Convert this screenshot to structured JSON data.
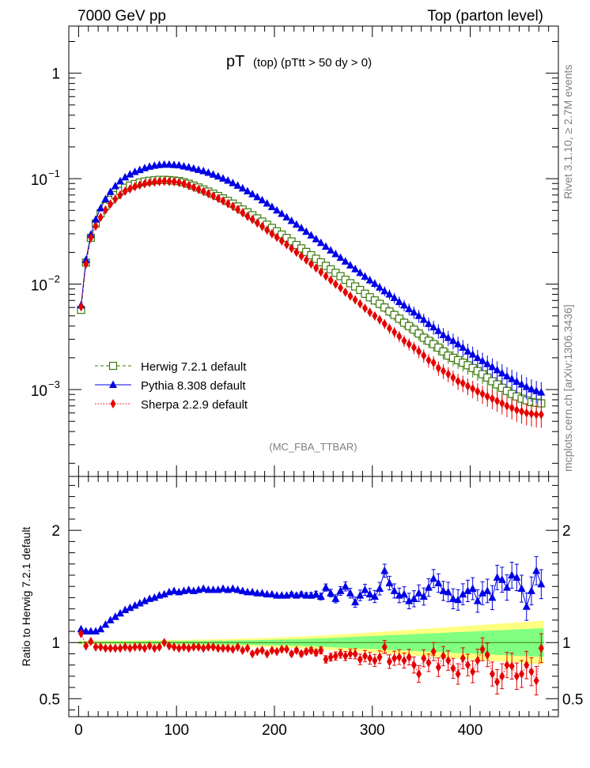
{
  "header": {
    "left": "7000 GeV pp",
    "right": "Top (parton level)"
  },
  "side_text": {
    "upper": "Rivet 3.1.10, ≥ 2.7M events",
    "lower": "mcplots.cern.ch [arXiv:1306.3436]"
  },
  "analysis_label": "(MC_FBA_TTBAR)",
  "colors": {
    "herwig": "#3c7a0c",
    "pythia": "#0000e6",
    "sherpa": "#e60000",
    "band_outer": "#ffff80",
    "band_inner": "#80ff80"
  },
  "chart_data": [
    {
      "type": "scatter",
      "panel": "main",
      "title_main": "pT",
      "title_sub": "(top) (pTtt > 50 dy > 0)",
      "xlim": [
        -10,
        490
      ],
      "ylim": [
        0.00015,
        2.8
      ],
      "yscale": "log",
      "yticks": [
        {
          "v": 1,
          "label": "1"
        },
        {
          "v": 0.1,
          "label": "10",
          "exp": "−1"
        },
        {
          "v": 0.01,
          "label": "10",
          "exp": "−2"
        },
        {
          "v": 0.001,
          "label": "10",
          "exp": "−3"
        }
      ],
      "legend": [
        {
          "key": "herwig",
          "label": "Herwig 7.2.1 default",
          "marker": "square-open",
          "line": "dashed"
        },
        {
          "key": "pythia",
          "label": "Pythia 8.308 default",
          "marker": "triangle",
          "line": "solid"
        },
        {
          "key": "sherpa",
          "label": "Sherpa 2.2.9 default",
          "marker": "diamond",
          "line": "dotted"
        }
      ],
      "legend_position": "bottom-left",
      "x_centers_start": 2.5,
      "bin_width": 5,
      "series": [
        {
          "name": "Herwig 7.2.1 default",
          "key": "herwig",
          "values": [
            0.0057,
            0.016,
            0.0275,
            0.0375,
            0.047,
            0.055,
            0.063,
            0.07,
            0.0765,
            0.082,
            0.086,
            0.089,
            0.092,
            0.094,
            0.0955,
            0.0965,
            0.0975,
            0.0975,
            0.097,
            0.096,
            0.095,
            0.0925,
            0.0895,
            0.086,
            0.0825,
            0.079,
            0.0755,
            0.072,
            0.0685,
            0.065,
            0.0615,
            0.058,
            0.0545,
            0.051,
            0.048,
            0.045,
            0.042,
            0.0392,
            0.0366,
            0.0341,
            0.0317,
            0.0295,
            0.0274,
            0.0254,
            0.0235,
            0.0218,
            0.0202,
            0.0188,
            0.0174,
            0.0161,
            0.0149,
            0.0138,
            0.0128,
            0.0119,
            0.011,
            0.0102,
            0.0095,
            0.0088,
            0.0081,
            0.0075,
            0.007,
            0.0065,
            0.006,
            0.0055,
            0.0051,
            0.0047,
            0.0043,
            0.004,
            0.0037,
            0.0034,
            0.0031,
            0.0029,
            0.0027,
            0.0025,
            0.0023,
            0.0021,
            0.002,
            0.0019,
            0.0018,
            0.0017,
            0.0016,
            0.0015,
            0.0014,
            0.0013,
            0.0012,
            0.00112,
            0.00104,
            0.00097,
            0.00091,
            0.00086,
            0.00082,
            0.00079,
            0.00076,
            0.00075,
            0.00074
          ]
        },
        {
          "name": "Pythia 8.308 default",
          "key": "pythia",
          "values": [
            0.0063,
            0.017,
            0.0295,
            0.041,
            0.0525,
            0.064,
            0.075,
            0.085,
            0.0945,
            0.103,
            0.11,
            0.116,
            0.121,
            0.126,
            0.13,
            0.133,
            0.135,
            0.136,
            0.136,
            0.135,
            0.134,
            0.131,
            0.1285,
            0.125,
            0.1215,
            0.118,
            0.114,
            0.1095,
            0.105,
            0.1005,
            0.096,
            0.091,
            0.086,
            0.081,
            0.076,
            0.0715,
            0.067,
            0.0625,
            0.0582,
            0.054,
            0.05,
            0.0465,
            0.043,
            0.0398,
            0.0368,
            0.034,
            0.0314,
            0.029,
            0.0267,
            0.0246,
            0.0227,
            0.0209,
            0.0193,
            0.0178,
            0.0164,
            0.0151,
            0.0139,
            0.0128,
            0.0118,
            0.0109,
            0.0101,
            0.0093,
            0.0086,
            0.008,
            0.0074,
            0.0068,
            0.0063,
            0.0058,
            0.0054,
            0.005,
            0.0046,
            0.0042,
            0.0039,
            0.0036,
            0.0033,
            0.0031,
            0.0029,
            0.0027,
            0.0025,
            0.0023,
            0.00215,
            0.002,
            0.00187,
            0.00175,
            0.00164,
            0.00153,
            0.00143,
            0.00134,
            0.00126,
            0.00119,
            0.00112,
            0.00106,
            0.00101,
            0.00097,
            0.00094
          ]
        },
        {
          "name": "Sherpa 2.2.9 default",
          "key": "sherpa",
          "values": [
            0.0061,
            0.0155,
            0.0275,
            0.0355,
            0.043,
            0.0505,
            0.0575,
            0.064,
            0.07,
            0.076,
            0.08,
            0.084,
            0.087,
            0.0895,
            0.0915,
            0.093,
            0.094,
            0.0945,
            0.0942,
            0.0935,
            0.092,
            0.0895,
            0.086,
            0.0825,
            0.079,
            0.0755,
            0.072,
            0.0685,
            0.065,
            0.0615,
            0.058,
            0.0545,
            0.051,
            0.0475,
            0.044,
            0.041,
            0.038,
            0.0352,
            0.0325,
            0.03,
            0.0278,
            0.0257,
            0.0237,
            0.0218,
            0.02,
            0.0184,
            0.0169,
            0.0155,
            0.0142,
            0.013,
            0.0119,
            0.0109,
            0.01,
            0.0092,
            0.0084,
            0.0077,
            0.0071,
            0.0065,
            0.0059,
            0.0054,
            0.005,
            0.0046,
            0.0042,
            0.0038,
            0.0035,
            0.0032,
            0.0029,
            0.0027,
            0.0025,
            0.0023,
            0.0021,
            0.0019,
            0.0018,
            0.0016,
            0.0015,
            0.0014,
            0.0013,
            0.0012,
            0.00115,
            0.00108,
            0.00102,
            0.00096,
            0.00091,
            0.00086,
            0.00082,
            0.00078,
            0.00074,
            0.0007,
            0.00067,
            0.00064,
            0.00062,
            0.0006,
            0.00059,
            0.00058,
            0.00058
          ]
        }
      ]
    },
    {
      "type": "scatter",
      "panel": "ratio",
      "ylabel": "Ratio to Herwig 7.2.1 default",
      "xlim": [
        -10,
        490
      ],
      "ylim": [
        0.34,
        2.48
      ],
      "xticks": [
        {
          "v": 0,
          "label": "0"
        },
        {
          "v": 100,
          "label": "100"
        },
        {
          "v": 200,
          "label": "200"
        },
        {
          "v": 300,
          "label": "300"
        },
        {
          "v": 400,
          "label": "400"
        }
      ],
      "yticks": [
        {
          "v": 0.5,
          "label": "0.5"
        },
        {
          "v": 1,
          "label": "1"
        },
        {
          "v": 2,
          "label": "2"
        }
      ],
      "x_centers_start": 2.5,
      "bin_width": 5,
      "band_inner_halfwidth": [
        0.01,
        0.01,
        0.01,
        0.01,
        0.01,
        0.01,
        0.01,
        0.01,
        0.011,
        0.011,
        0.011,
        0.011,
        0.012,
        0.012,
        0.012,
        0.012,
        0.013,
        0.013,
        0.013,
        0.014,
        0.014,
        0.014,
        0.015,
        0.015,
        0.015,
        0.016,
        0.016,
        0.017,
        0.017,
        0.018,
        0.018,
        0.019,
        0.019,
        0.02,
        0.021,
        0.021,
        0.022,
        0.023,
        0.024,
        0.025,
        0.026,
        0.027,
        0.028,
        0.029,
        0.03,
        0.031,
        0.033,
        0.034,
        0.036,
        0.037,
        0.039,
        0.041,
        0.043,
        0.045,
        0.047,
        0.049,
        0.051,
        0.053,
        0.055,
        0.057,
        0.059,
        0.061,
        0.063,
        0.065,
        0.067,
        0.069,
        0.071,
        0.073,
        0.075,
        0.077,
        0.079,
        0.081,
        0.083,
        0.085,
        0.087,
        0.089,
        0.091,
        0.093,
        0.095,
        0.097,
        0.099,
        0.101,
        0.103,
        0.105,
        0.107,
        0.109,
        0.111,
        0.113,
        0.115,
        0.117,
        0.119,
        0.121,
        0.123,
        0.125,
        0.127
      ],
      "band_outer_halfwidth": [
        0.016,
        0.016,
        0.016,
        0.016,
        0.017,
        0.017,
        0.017,
        0.018,
        0.018,
        0.018,
        0.019,
        0.019,
        0.02,
        0.02,
        0.021,
        0.021,
        0.022,
        0.022,
        0.023,
        0.023,
        0.024,
        0.024,
        0.025,
        0.026,
        0.026,
        0.027,
        0.028,
        0.029,
        0.03,
        0.031,
        0.032,
        0.033,
        0.034,
        0.035,
        0.036,
        0.037,
        0.038,
        0.04,
        0.041,
        0.043,
        0.044,
        0.046,
        0.048,
        0.05,
        0.052,
        0.054,
        0.056,
        0.058,
        0.06,
        0.062,
        0.064,
        0.067,
        0.069,
        0.072,
        0.074,
        0.077,
        0.08,
        0.083,
        0.086,
        0.089,
        0.092,
        0.095,
        0.098,
        0.101,
        0.104,
        0.107,
        0.11,
        0.113,
        0.116,
        0.119,
        0.122,
        0.125,
        0.128,
        0.131,
        0.134,
        0.137,
        0.14,
        0.143,
        0.146,
        0.149,
        0.152,
        0.155,
        0.158,
        0.161,
        0.164,
        0.167,
        0.17,
        0.173,
        0.176,
        0.179,
        0.182,
        0.185,
        0.188,
        0.191,
        0.194
      ],
      "series": [
        {
          "name": "Pythia 8.308 default",
          "key": "pythia",
          "values": [
            1.12,
            1.1,
            1.1,
            1.1,
            1.12,
            1.16,
            1.2,
            1.23,
            1.26,
            1.29,
            1.31,
            1.33,
            1.35,
            1.37,
            1.39,
            1.4,
            1.42,
            1.43,
            1.45,
            1.46,
            1.45,
            1.46,
            1.47,
            1.46,
            1.47,
            1.48,
            1.47,
            1.47,
            1.47,
            1.48,
            1.47,
            1.48,
            1.47,
            1.46,
            1.45,
            1.45,
            1.44,
            1.44,
            1.43,
            1.43,
            1.42,
            1.42,
            1.42,
            1.43,
            1.42,
            1.43,
            1.42,
            1.42,
            1.43,
            1.41,
            1.49,
            1.44,
            1.39,
            1.46,
            1.5,
            1.44,
            1.36,
            1.42,
            1.47,
            1.43,
            1.41,
            1.48,
            1.64,
            1.53,
            1.46,
            1.42,
            1.43,
            1.37,
            1.39,
            1.44,
            1.41,
            1.49,
            1.57,
            1.53,
            1.46,
            1.45,
            1.39,
            1.38,
            1.43,
            1.46,
            1.48,
            1.37,
            1.44,
            1.46,
            1.4,
            1.58,
            1.56,
            1.49,
            1.6,
            1.58,
            1.48,
            1.32,
            1.46,
            1.64,
            1.52
          ]
        },
        {
          "name": "Sherpa 2.2.9 default",
          "key": "sherpa",
          "values": [
            1.08,
            0.97,
            1.01,
            0.96,
            0.96,
            0.95,
            0.95,
            0.95,
            0.95,
            0.96,
            0.95,
            0.96,
            0.96,
            0.95,
            0.97,
            0.95,
            0.96,
            1.0,
            0.97,
            0.96,
            0.95,
            0.96,
            0.95,
            0.96,
            0.96,
            0.95,
            0.96,
            0.96,
            0.95,
            0.95,
            0.95,
            0.94,
            0.96,
            0.93,
            0.95,
            0.9,
            0.92,
            0.93,
            0.9,
            0.93,
            0.92,
            0.94,
            0.94,
            0.9,
            0.93,
            0.9,
            0.92,
            0.93,
            0.91,
            0.93,
            0.85,
            0.87,
            0.88,
            0.9,
            0.88,
            0.9,
            0.9,
            0.85,
            0.88,
            0.86,
            0.84,
            0.87,
            0.96,
            0.83,
            0.86,
            0.87,
            0.84,
            0.87,
            0.8,
            0.72,
            0.86,
            0.82,
            0.92,
            0.78,
            0.88,
            0.84,
            0.77,
            0.72,
            0.86,
            0.8,
            0.74,
            0.84,
            0.94,
            0.89,
            0.72,
            0.65,
            0.7,
            0.8,
            0.79,
            0.7,
            0.72,
            0.8,
            0.74,
            0.66,
            0.95
          ]
        }
      ]
    }
  ]
}
